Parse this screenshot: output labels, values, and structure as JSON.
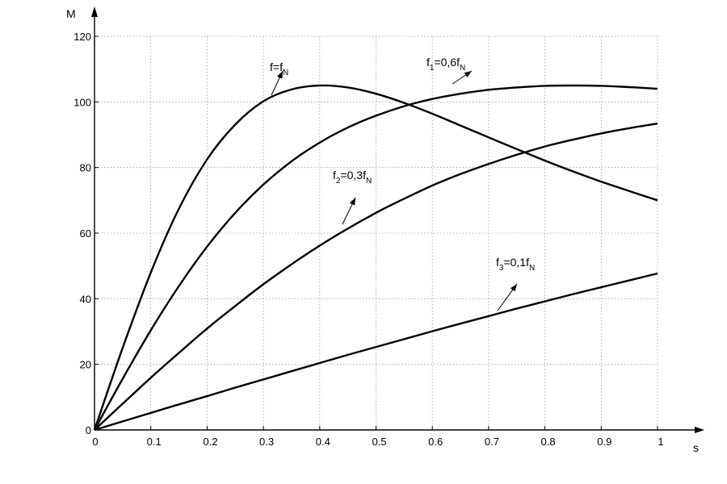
{
  "chart_data": {
    "type": "line",
    "title": "",
    "xlabel": "s",
    "ylabel": "M",
    "xlim": [
      0,
      1
    ],
    "ylim": [
      0,
      120
    ],
    "grid": true,
    "xticks": [
      "0",
      "0.1",
      "0.2",
      "0.3",
      "0.4",
      "0.5",
      "0.6",
      "0.7",
      "0.8",
      "0.9",
      "1"
    ],
    "yticks": [
      "0",
      "20",
      "40",
      "60",
      "80",
      "100",
      "120"
    ],
    "x": [
      0,
      0.05,
      0.1,
      0.15,
      0.2,
      0.25,
      0.3,
      0.35,
      0.4,
      0.45,
      0.5,
      0.55,
      0.6,
      0.65,
      0.7,
      0.75,
      0.8,
      0.85,
      0.9,
      0.95,
      1.0
    ],
    "series": [
      {
        "label_main": "f=f",
        "label_sub": "N",
        "label_tail": "",
        "values": [
          0,
          25.0,
          48.0,
          67.5,
          82.5,
          93.1,
          100.2,
          103.8,
          105.0,
          104.4,
          102.5,
          99.7,
          96.4,
          92.8,
          89.2,
          85.6,
          82.1,
          78.8,
          75.7,
          72.8,
          70.0
        ]
      },
      {
        "label_main": "f",
        "label_sub": "1",
        "label_tail": "=0,6f",
        "label_sub2": "N",
        "values": [
          0,
          15.6,
          30.4,
          43.9,
          55.9,
          66.2,
          74.8,
          81.9,
          87.6,
          92.2,
          95.8,
          98.7,
          100.9,
          102.5,
          103.7,
          104.4,
          104.9,
          105.0,
          104.9,
          104.5,
          104.0
        ]
      },
      {
        "label_main": "f",
        "label_sub": "2",
        "label_tail": "=0,3f",
        "label_sub2": "N",
        "values": [
          0,
          8.0,
          15.9,
          23.5,
          30.9,
          37.8,
          44.4,
          50.5,
          56.2,
          61.4,
          66.2,
          70.5,
          74.5,
          78.0,
          81.1,
          83.9,
          86.4,
          88.5,
          90.4,
          92.0,
          93.4
        ]
      },
      {
        "label_main": "f",
        "label_sub": "3",
        "label_tail": "=0,1f",
        "label_sub2": "N",
        "values": [
          0,
          2.6,
          5.2,
          7.8,
          10.3,
          12.9,
          15.4,
          17.9,
          20.4,
          22.9,
          25.3,
          27.7,
          30.1,
          32.4,
          34.7,
          37.0,
          39.2,
          41.4,
          43.5,
          45.6,
          47.7
        ]
      }
    ]
  }
}
